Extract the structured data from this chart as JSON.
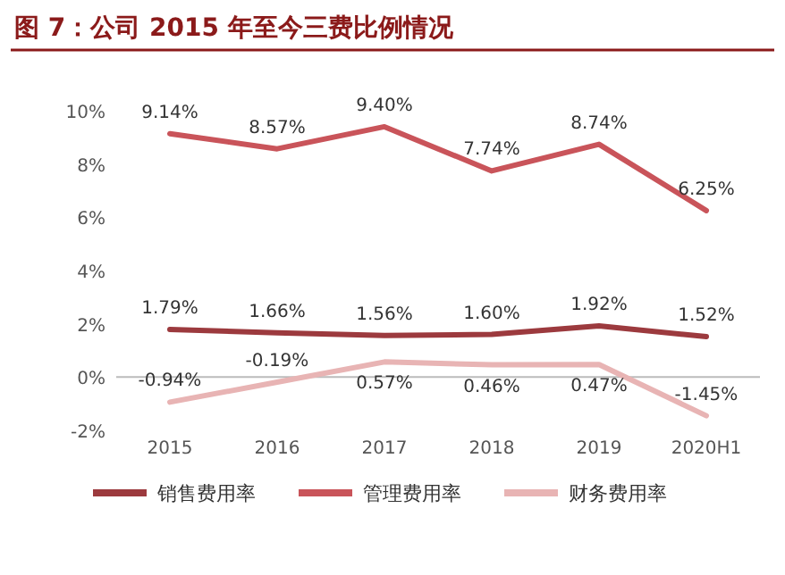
{
  "chart_data": {
    "type": "line",
    "title": "图 7：公司 2015 年至今三费比例情况",
    "categories": [
      "2015",
      "2016",
      "2017",
      "2018",
      "2019",
      "2020H1"
    ],
    "series": [
      {
        "name": "销售费用率",
        "color": "#9c3a3e",
        "values": [
          1.79,
          1.66,
          1.56,
          1.6,
          1.92,
          1.52
        ],
        "value_labels": [
          "1.79%",
          "1.66%",
          "1.56%",
          "1.60%",
          "1.92%",
          "1.52%"
        ]
      },
      {
        "name": "管理费用率",
        "color": "#c9545a",
        "values": [
          9.14,
          8.57,
          9.4,
          7.74,
          8.74,
          6.25
        ],
        "value_labels": [
          "9.14%",
          "8.57%",
          "9.40%",
          "7.74%",
          "8.74%",
          "6.25%"
        ]
      },
      {
        "name": "财务费用率",
        "color": "#e8b4b4",
        "values": [
          -0.94,
          -0.19,
          0.57,
          0.46,
          0.47,
          -1.45
        ],
        "value_labels": [
          "-0.94%",
          "-0.19%",
          "0.57%",
          "0.46%",
          "0.47%",
          "-1.45%"
        ]
      }
    ],
    "ylim": [
      -2,
      10
    ],
    "yticks": [
      {
        "value": -2,
        "label": "-2%"
      },
      {
        "value": 0,
        "label": "0%"
      },
      {
        "value": 2,
        "label": "2%"
      },
      {
        "value": 4,
        "label": "4%"
      },
      {
        "value": 6,
        "label": "6%"
      },
      {
        "value": 8,
        "label": "8%"
      },
      {
        "value": 10,
        "label": "10%"
      }
    ],
    "legend": "bottom",
    "marker": "none",
    "line_style": "solid"
  }
}
